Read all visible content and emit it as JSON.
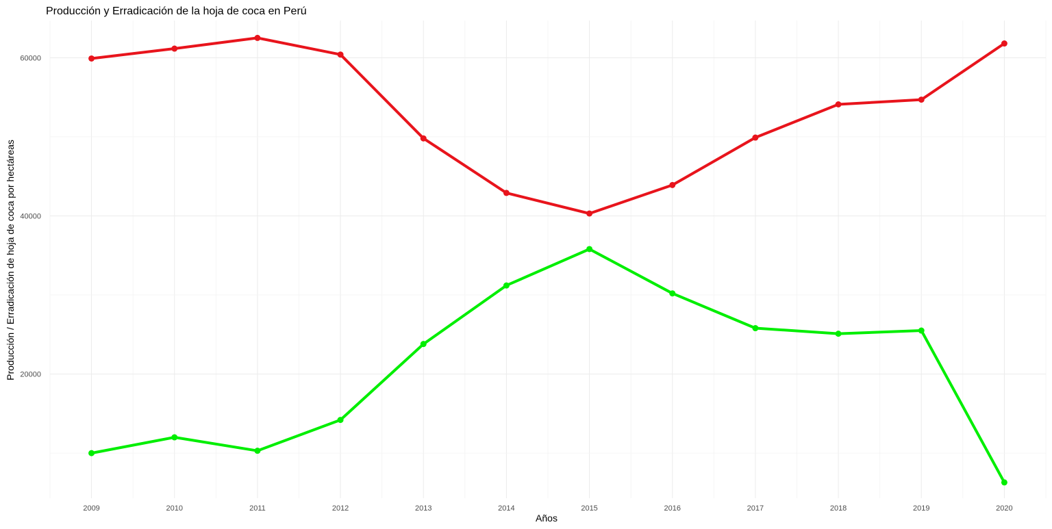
{
  "chart_data": {
    "type": "line",
    "title": "Producción y Erradicación de la hoja de coca en Perú",
    "xlabel": "Años",
    "ylabel": "Producción / Erradicación de hoja de coca por hectáreas",
    "x": [
      2009,
      2010,
      2011,
      2012,
      2013,
      2014,
      2015,
      2016,
      2017,
      2018,
      2019,
      2020
    ],
    "x_tick_labels": [
      "2009",
      "2010",
      "2011",
      "2012",
      "2013",
      "2014",
      "2015",
      "2016",
      "2017",
      "2018",
      "2019",
      "2020"
    ],
    "y_tick_values": [
      20000,
      40000,
      60000
    ],
    "y_tick_labels": [
      "20000",
      "40000",
      "60000"
    ],
    "xlim": [
      2008.5,
      2020.5
    ],
    "ylim": [
      4300,
      64700
    ],
    "grid": true,
    "legend": "none",
    "series": [
      {
        "color": "#e8141c",
        "values": [
          59900,
          61150,
          62500,
          60400,
          49800,
          42900,
          40300,
          43900,
          49900,
          54100,
          54700,
          61800
        ]
      },
      {
        "color": "#00ee00",
        "values": [
          10000,
          12000,
          10300,
          14200,
          23800,
          31200,
          35800,
          30200,
          25800,
          25100,
          25500,
          6300
        ]
      }
    ]
  }
}
